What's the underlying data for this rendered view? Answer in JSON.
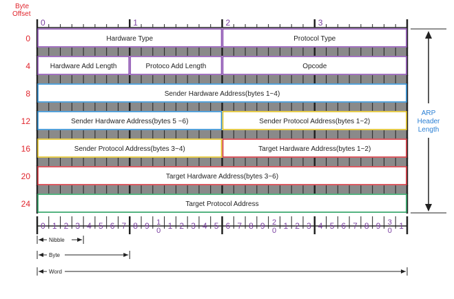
{
  "header": {
    "byte_offset_label": [
      "Byte",
      "Offset"
    ],
    "top_numbers": [
      "0",
      "1",
      "2",
      "3"
    ]
  },
  "rows": [
    {
      "offset": "0",
      "fields": [
        {
          "label": "Hardware Type",
          "bits": 16,
          "color": "#8a4fb0"
        },
        {
          "label": "Protocol Type",
          "bits": 16,
          "color": "#8a4fb0"
        }
      ]
    },
    {
      "offset": "4",
      "fields": [
        {
          "label": "Hardware Add Length",
          "bits": 8,
          "color": "#8a4fb0"
        },
        {
          "label": "Protoco Add Length",
          "bits": 8,
          "color": "#8a4fb0"
        },
        {
          "label": "Opcode",
          "bits": 16,
          "color": "#8a4fb0"
        }
      ]
    },
    {
      "offset": "8",
      "fields": [
        {
          "label": "Sender Hardware Address(bytes 1~4)",
          "bits": 32,
          "color": "#2a8ad0"
        }
      ]
    },
    {
      "offset": "12",
      "fields": [
        {
          "label": "Sender Hardware Address(bytes 5 ~6)",
          "bits": 16,
          "color": "#2a8ad0"
        },
        {
          "label": "Sender Protocol Address(bytes 1~2)",
          "bits": 16,
          "color": "#e0c020"
        }
      ]
    },
    {
      "offset": "16",
      "fields": [
        {
          "label": "Sender Protocol Address(bytes 3~4)",
          "bits": 16,
          "color": "#e0c020"
        },
        {
          "label": "Target Hardware Address(bytes 1~2)",
          "bits": 16,
          "color": "#d0303a"
        }
      ]
    },
    {
      "offset": "20",
      "fields": [
        {
          "label": "Target Hardware Address(bytes 3~6)",
          "bits": 32,
          "color": "#d0303a"
        }
      ]
    },
    {
      "offset": "24",
      "fields": [
        {
          "label": "Target Protocol Address",
          "bits": 32,
          "color": "#2aa060"
        }
      ]
    }
  ],
  "bit_labels": [
    "0",
    "1",
    "2",
    "3",
    "4",
    "5",
    "6",
    "7",
    "8",
    "9",
    "10",
    "1",
    "2",
    "3",
    "4",
    "5",
    "6",
    "7",
    "8",
    "9",
    "20",
    "1",
    "2",
    "3",
    "4",
    "5",
    "6",
    "7",
    "8",
    "9",
    "30",
    "1"
  ],
  "arp_header_label": [
    "ARP",
    "Header",
    "Length"
  ],
  "legend": {
    "nibble": "Nibble",
    "byte": "Byte",
    "word": "Word"
  },
  "colors": {
    "offset": "#e0242c",
    "bit_numbers": "#7a3fa0",
    "arp_label": "#2a7fd4"
  }
}
